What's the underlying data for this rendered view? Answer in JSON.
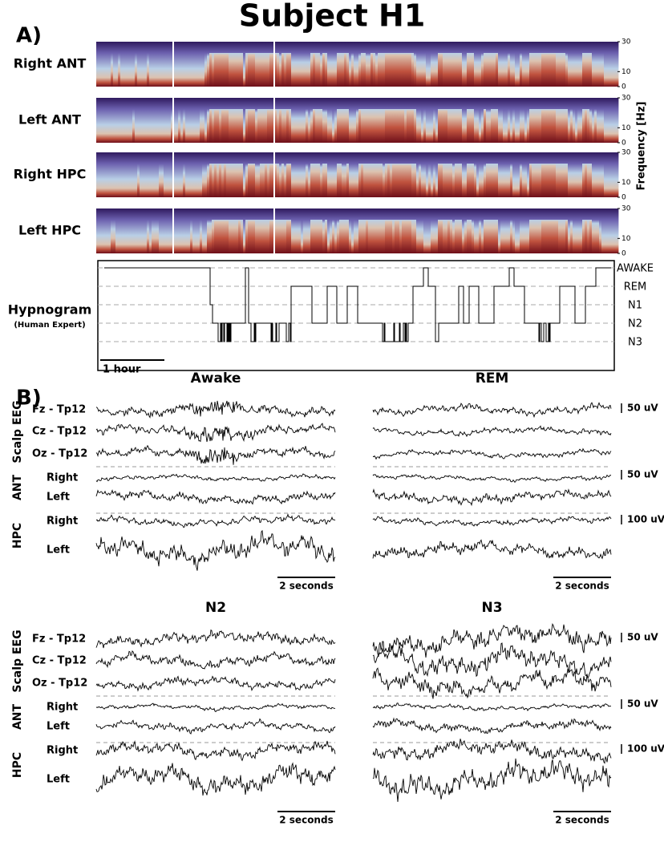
{
  "title": "Subject H1",
  "panel_a": {
    "label": "A)",
    "spectrograms": [
      {
        "label": "Right ANT"
      },
      {
        "label": "Left ANT"
      },
      {
        "label": "Right HPC"
      },
      {
        "label": "Left HPC"
      }
    ],
    "frequency_axis": {
      "label": "Frequency [Hz]",
      "ticks": [
        "30",
        "10",
        "0"
      ]
    },
    "hypnogram": {
      "label": "Hypnogram",
      "sublabel": "(Human Expert)",
      "stages": [
        "AWAKE",
        "REM",
        "N1",
        "N2",
        "N3"
      ],
      "scale": "1 hour"
    }
  },
  "panel_b": {
    "label": "B)",
    "panels": [
      {
        "title": "Awake"
      },
      {
        "title": "REM"
      },
      {
        "title": "N2"
      },
      {
        "title": "N3"
      }
    ],
    "groups": [
      {
        "label": "Scalp EEG",
        "channels": [
          "Fz - Tp12",
          "Cz - Tp12",
          "Oz - Tp12"
        ],
        "scale": "50 uV"
      },
      {
        "label": "ANT",
        "channels": [
          "Right",
          "Left"
        ],
        "scale": "50 uV"
      },
      {
        "label": "HPC",
        "channels": [
          "Right",
          "Left"
        ],
        "scale": "100 uV"
      }
    ],
    "time_scale": "2 seconds"
  }
}
